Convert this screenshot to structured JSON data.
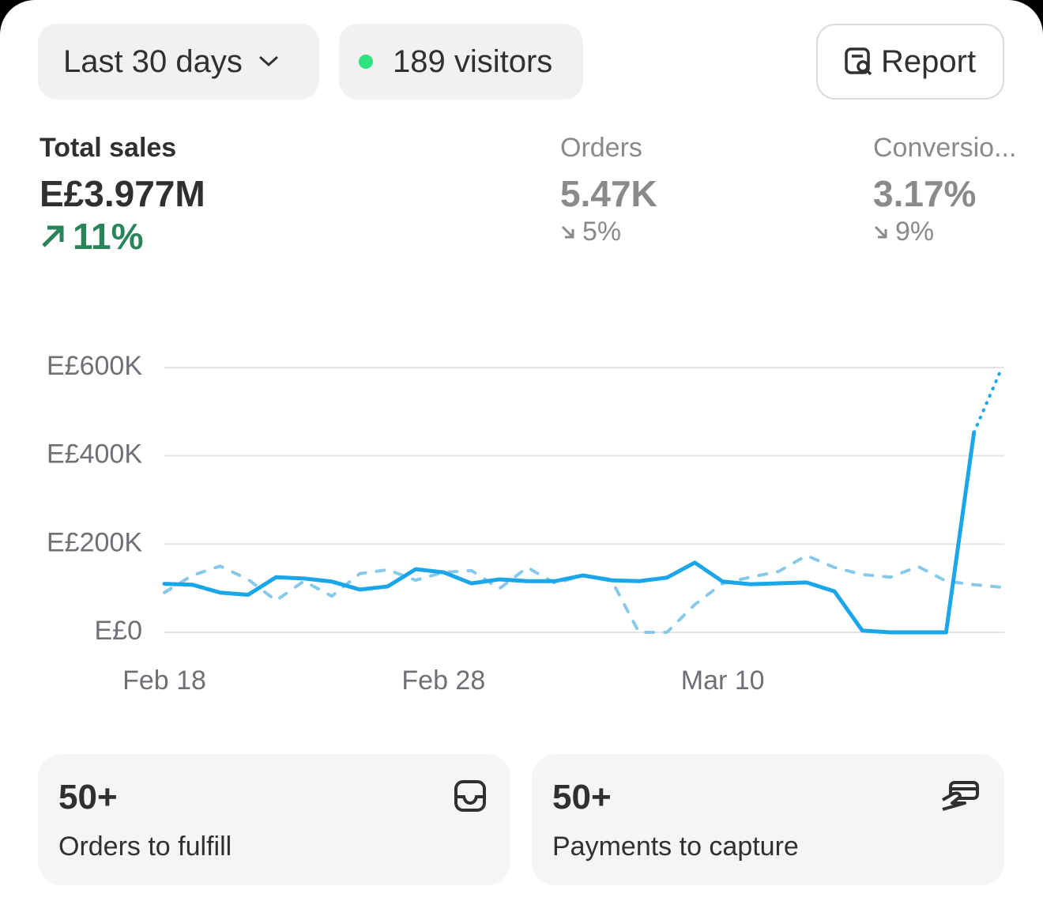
{
  "header": {
    "range": "Last 30 days",
    "visitors": "189 visitors",
    "report": "Report"
  },
  "metrics": [
    {
      "label": "Total sales",
      "value": "E£3.977M",
      "change": "11%"
    },
    {
      "label": "Orders",
      "value": "5.47K",
      "change": "5%"
    },
    {
      "label": "Conversio...",
      "value": "3.17%",
      "change": "9%"
    }
  ],
  "chart_data": {
    "type": "line",
    "categories": [
      "Feb 18",
      null,
      null,
      null,
      null,
      null,
      null,
      null,
      null,
      null,
      "Feb 28",
      null,
      null,
      null,
      null,
      null,
      null,
      null,
      null,
      null,
      "Mar 10",
      null,
      null,
      null,
      null,
      null,
      null,
      null,
      null,
      null,
      null
    ],
    "series": [
      {
        "color": "#1ba6ea",
        "style": "solid",
        "values": [
          110000,
          108000,
          90000,
          85000,
          125000,
          122000,
          115000,
          97000,
          104000,
          143000,
          136000,
          111000,
          120000,
          116000,
          116000,
          129000,
          118000,
          116000,
          124000,
          158000,
          115000,
          109000,
          111000,
          113000,
          93000,
          4000,
          0,
          0,
          0,
          453000,
          null
        ]
      },
      {
        "color": "#1ba6ea",
        "style": "dotted",
        "values": [
          null,
          null,
          null,
          null,
          null,
          null,
          null,
          null,
          null,
          null,
          null,
          null,
          null,
          null,
          null,
          null,
          null,
          null,
          null,
          null,
          null,
          null,
          null,
          null,
          null,
          null,
          null,
          null,
          null,
          453000,
          600000
        ]
      },
      {
        "color": "#86c9ea",
        "style": "dashed",
        "values": [
          90000,
          129000,
          150000,
          120000,
          72000,
          116000,
          82000,
          133000,
          142000,
          118000,
          136000,
          140000,
          99000,
          147000,
          111000,
          129000,
          120000,
          0,
          0,
          63000,
          111000,
          125000,
          138000,
          174000,
          147000,
          131000,
          125000,
          149000,
          116000,
          108000,
          102000
        ]
      }
    ],
    "ylim": [
      0,
      600000
    ],
    "yticks": [
      {
        "value": 0,
        "label": "E£0"
      },
      {
        "value": 200000,
        "label": "E£200K"
      },
      {
        "value": 400000,
        "label": "E£400K"
      },
      {
        "value": 600000,
        "label": "E£600K"
      }
    ],
    "grid": true
  },
  "cards": [
    {
      "count": "50+",
      "label": "Orders to fulfill"
    },
    {
      "count": "50+",
      "label": "Payments to capture"
    }
  ]
}
